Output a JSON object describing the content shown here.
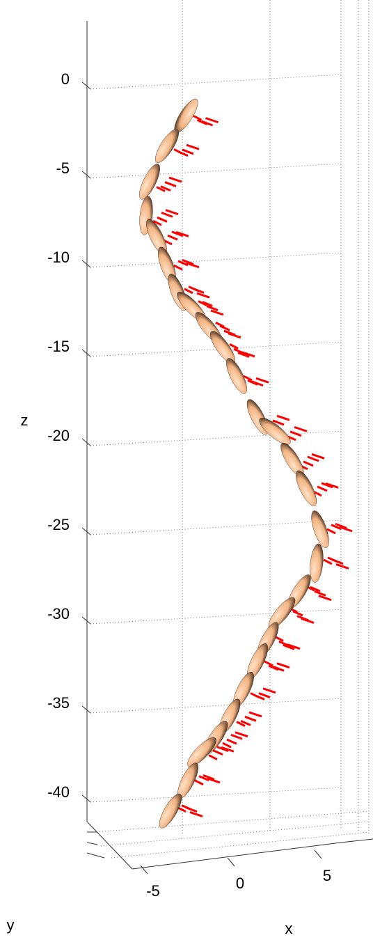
{
  "chart_data": {
    "type": "ellipsoid3d",
    "zlabel": "z",
    "xlabel": "x",
    "ylabel": "y",
    "zlim": [
      -42,
      4
    ],
    "zticks": [
      0,
      -5,
      -10,
      -15,
      -20,
      -25,
      -30,
      -35,
      -40
    ],
    "xticks": [
      -5,
      0,
      5
    ],
    "grid": true,
    "color": "#f2b483",
    "shadow_color": "#3a2418",
    "vector_color": "#ff0000",
    "x": [
      -3.1,
      -4.2,
      -5.2,
      -5.4,
      -4.8,
      -4.2,
      -3.6,
      -2.8,
      -1.8,
      -1.0,
      -0.2,
      1.0,
      2.0,
      3.0,
      3.8,
      4.6,
      4.4,
      3.4,
      2.4,
      1.6,
      1.0,
      0.2,
      -0.6,
      -1.4,
      -2.2,
      -3.0,
      -4.0
    ],
    "z": [
      -2.0,
      -3.7,
      -5.7,
      -7.6,
      -8.8,
      -10.4,
      -11.9,
      -12.7,
      -13.9,
      -15.0,
      -16.6,
      -18.9,
      -19.7,
      -21.3,
      -22.9,
      -25.2,
      -27.1,
      -28.7,
      -29.9,
      -31.4,
      -32.6,
      -34.2,
      -35.7,
      -36.9,
      -37.7,
      -39.3,
      -41.0
    ]
  }
}
